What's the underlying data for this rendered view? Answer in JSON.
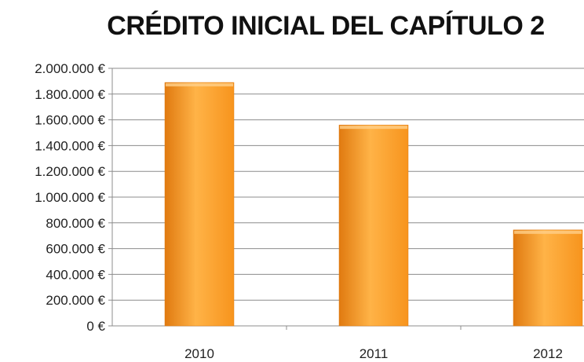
{
  "chart_data": {
    "type": "bar",
    "title": "CRÉDITO INICIAL DEL CAPÍTULO 2",
    "xlabel": "",
    "ylabel": "",
    "categories": [
      "2010",
      "2011",
      "2012"
    ],
    "values": [
      1890000,
      1560000,
      745000
    ],
    "ylim": [
      0,
      2000000
    ],
    "yticks": [
      {
        "value": 0,
        "label": "0 €"
      },
      {
        "value": 200000,
        "label": "200.000 €"
      },
      {
        "value": 400000,
        "label": "400.000 €"
      },
      {
        "value": 600000,
        "label": "600.000 €"
      },
      {
        "value": 800000,
        "label": "800.000 €"
      },
      {
        "value": 1000000,
        "label": "1.000.000 €"
      },
      {
        "value": 1200000,
        "label": "1.200.000 €"
      },
      {
        "value": 1400000,
        "label": "1.400.000 €"
      },
      {
        "value": 1600000,
        "label": "1.600.000 €"
      },
      {
        "value": 1800000,
        "label": "1.800.000 €"
      },
      {
        "value": 2000000,
        "label": "2.000.000 €"
      }
    ],
    "grid": true,
    "legend": "none",
    "colors": {
      "bar_light": "#ffb347",
      "bar_mid": "#f7941d",
      "bar_dark": "#e07a10",
      "gridline": "#8c8c8c",
      "axis": "#8c8c8c"
    }
  }
}
